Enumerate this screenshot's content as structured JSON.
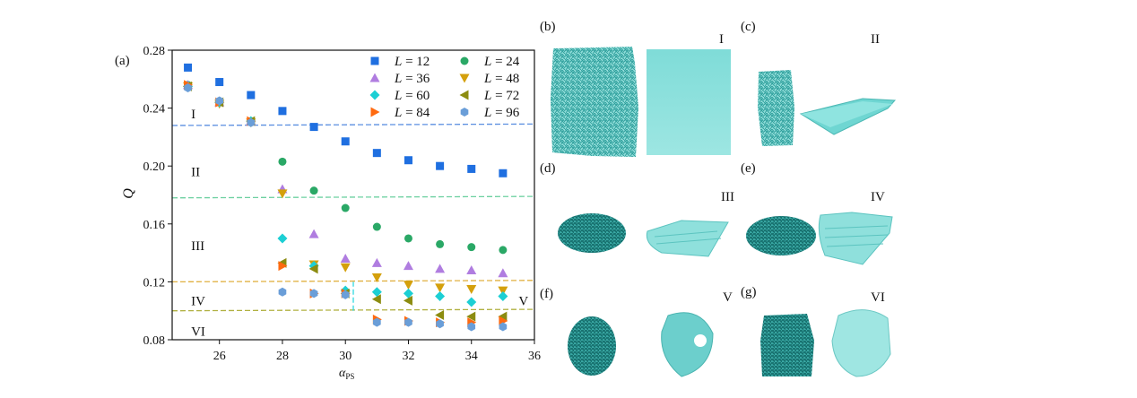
{
  "chart_data": {
    "type": "scatter",
    "panel_label": "(a)",
    "xlabel": "α",
    "xlabel_sub": "PS",
    "ylabel": "Q",
    "xlim": [
      24.5,
      36
    ],
    "ylim": [
      0.08,
      0.28
    ],
    "xticks": [
      "26",
      "28",
      "30",
      "32",
      "34",
      "36"
    ],
    "yticks": [
      "0.08",
      "0.12",
      "0.16",
      "0.20",
      "0.24",
      "0.28"
    ],
    "grid": false,
    "legend_placement": "top-right",
    "x": [
      25,
      26,
      27,
      28,
      29,
      30,
      31,
      32,
      33,
      34,
      35
    ],
    "series": [
      {
        "name": "L = 12",
        "marker": "square",
        "color": "#1f6fe0",
        "values": [
          0.268,
          0.258,
          0.249,
          0.238,
          0.227,
          0.217,
          0.209,
          0.204,
          0.2,
          0.198,
          0.195
        ]
      },
      {
        "name": "L = 24",
        "marker": "circle",
        "color": "#2aa866",
        "values": [
          0.256,
          0.244,
          0.231,
          0.203,
          0.183,
          0.171,
          0.158,
          0.15,
          0.146,
          0.144,
          0.142
        ]
      },
      {
        "name": "L = 36",
        "marker": "triangle-up",
        "color": "#b07de0",
        "values": [
          0.256,
          0.244,
          0.231,
          0.184,
          0.153,
          0.136,
          0.133,
          0.131,
          0.129,
          0.128,
          0.126
        ]
      },
      {
        "name": "L = 48",
        "marker": "triangle-down",
        "color": "#d4a00c",
        "values": [
          0.255,
          0.243,
          0.23,
          0.181,
          0.132,
          0.13,
          0.123,
          0.118,
          0.116,
          0.115,
          0.114
        ]
      },
      {
        "name": "L = 60",
        "marker": "diamond",
        "color": "#1ccfd4",
        "values": [
          0.255,
          0.244,
          0.231,
          0.15,
          0.131,
          0.114,
          0.113,
          0.112,
          0.11,
          0.106,
          0.11
        ]
      },
      {
        "name": "L = 72",
        "marker": "triangle-left",
        "color": "#8c8c10",
        "values": [
          0.255,
          0.244,
          0.231,
          0.133,
          0.129,
          0.112,
          0.108,
          0.107,
          0.097,
          0.096,
          0.096
        ]
      },
      {
        "name": "L = 84",
        "marker": "triangle-right",
        "color": "#ff6a10",
        "values": [
          0.256,
          0.244,
          0.231,
          0.131,
          0.112,
          0.112,
          0.094,
          0.093,
          0.092,
          0.092,
          0.093
        ]
      },
      {
        "name": "L = 96",
        "marker": "hexagon",
        "color": "#6a9ed8",
        "values": [
          0.254,
          0.245,
          0.23,
          0.113,
          0.112,
          0.111,
          0.092,
          0.092,
          0.091,
          0.089,
          0.089
        ]
      }
    ],
    "boundaries": [
      {
        "color": "#5b8fe0",
        "from": [
          24.5,
          0.228
        ],
        "to": [
          36,
          0.229
        ]
      },
      {
        "color": "#6cd0a0",
        "from": [
          24.5,
          0.178
        ],
        "to": [
          36,
          0.179
        ]
      },
      {
        "color": "#e0b040",
        "from": [
          24.5,
          0.12
        ],
        "to": [
          36,
          0.121
        ]
      },
      {
        "color": "#b0b040",
        "from": [
          24.5,
          0.1
        ],
        "to": [
          36,
          0.101
        ]
      },
      {
        "color": "#30d8e0",
        "from": [
          30.25,
          0.1
        ],
        "to": [
          30.25,
          0.12
        ]
      }
    ],
    "regions": [
      {
        "label": "I",
        "x": 25.1,
        "y": 0.236
      },
      {
        "label": "II",
        "x": 25.1,
        "y": 0.196
      },
      {
        "label": "III",
        "x": 25.1,
        "y": 0.145
      },
      {
        "label": "IV",
        "x": 25.1,
        "y": 0.107
      },
      {
        "label": "VI",
        "x": 25.1,
        "y": 0.086
      },
      {
        "label": "V",
        "x": 35.5,
        "y": 0.107
      }
    ]
  },
  "panels": [
    {
      "label": "(b)",
      "phase": "I"
    },
    {
      "label": "(c)",
      "phase": "II"
    },
    {
      "label": "(d)",
      "phase": "III"
    },
    {
      "label": "(e)",
      "phase": "IV"
    },
    {
      "label": "(f)",
      "phase": "V"
    },
    {
      "label": "(g)",
      "phase": "VI"
    }
  ],
  "colors": {
    "mesh": "#2a9d9a",
    "sheet": "#7fdcd8"
  }
}
